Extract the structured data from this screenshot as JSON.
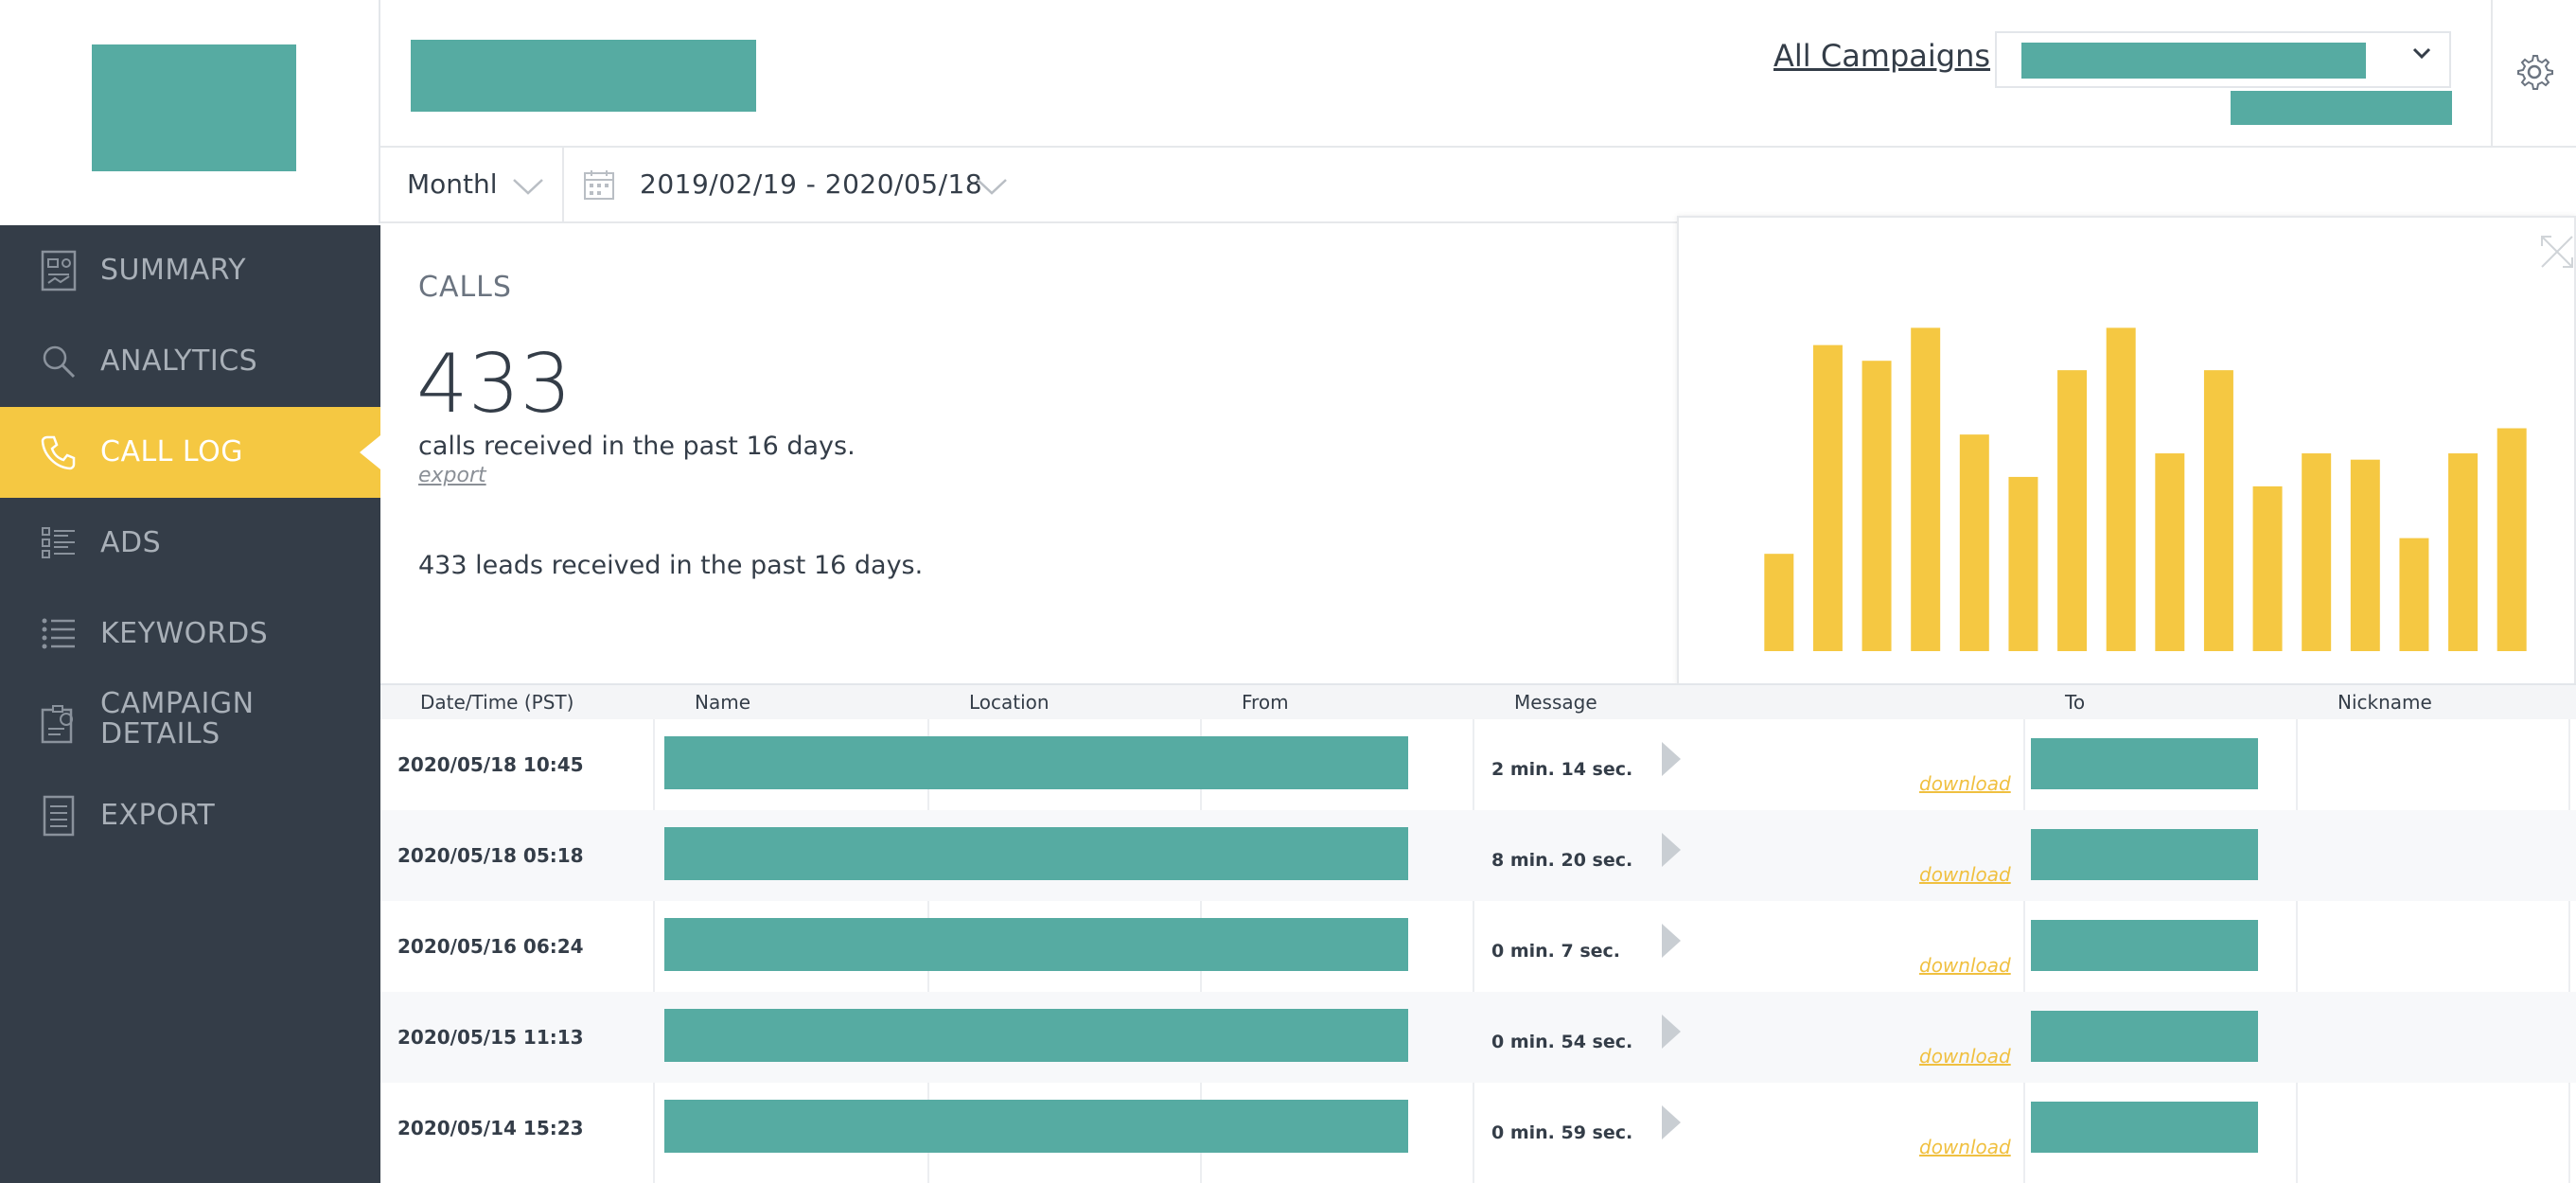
{
  "sidebar": {
    "items": [
      {
        "label": "SUMMARY",
        "icon": "summary-report-icon",
        "active": false
      },
      {
        "label": "ANALYTICS",
        "icon": "search-icon",
        "active": false
      },
      {
        "label": "CALL LOG",
        "icon": "phone-icon",
        "active": true
      },
      {
        "label": "ADS",
        "icon": "ads-list-icon",
        "active": false
      },
      {
        "label": "KEYWORDS",
        "icon": "list-icon",
        "active": false
      },
      {
        "label": "CAMPAIGN",
        "label2": "DETAILS",
        "icon": "campaign-details-icon",
        "active": false
      },
      {
        "label": "EXPORT",
        "icon": "document-icon",
        "active": false
      }
    ]
  },
  "header": {
    "breadcrumb_link": "All Campaigns",
    "breadcrumb_sep": ">"
  },
  "filters": {
    "period": "Monthl",
    "date_range": "2019/02/19 - 2020/05/18"
  },
  "calls": {
    "heading": "CALLS",
    "count": "433",
    "description": "calls received in the past 16 days.",
    "export_label": "export",
    "leads": "433 leads received in the past 16 days."
  },
  "chart_data": {
    "type": "bar",
    "values": [
      6.2,
      19.5,
      18.5,
      20.6,
      13.8,
      11.1,
      17.9,
      20.6,
      12.6,
      17.9,
      10.5,
      12.6,
      12.2,
      7.2,
      12.6,
      14.2
    ],
    "ylim": [
      0,
      24
    ],
    "color": "#f5c842",
    "grid": false
  },
  "table": {
    "columns": [
      "Date/Time (PST)",
      "Name",
      "Location",
      "From",
      "Message",
      "To",
      "Nickname"
    ],
    "download_label": "download",
    "rows": [
      {
        "datetime": "2020/05/18 10:45",
        "message": "2 min. 14 sec."
      },
      {
        "datetime": "2020/05/18 05:18",
        "message": "8 min. 20 sec."
      },
      {
        "datetime": "2020/05/16 06:24",
        "message": "0 min. 7 sec."
      },
      {
        "datetime": "2020/05/15 11:13",
        "message": "0 min. 54 sec."
      },
      {
        "datetime": "2020/05/14 15:23",
        "message": "0 min. 59 sec."
      }
    ]
  },
  "colors": {
    "sidebar_bg": "#343d48",
    "accent": "#f5c842",
    "redaction": "#56aba2"
  }
}
